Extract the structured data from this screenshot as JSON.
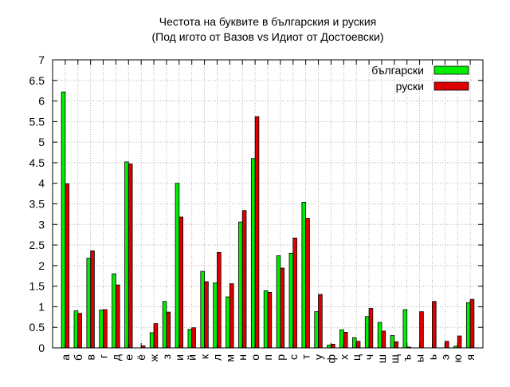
{
  "chart_data": {
    "type": "bar",
    "title": "Честота на буквите в българския и руския",
    "subtitle": "(Под игото от Вазов vs Идиот от Достоевски)",
    "xlabel": "",
    "ylabel": "",
    "ylim": [
      0,
      7
    ],
    "yticks": [
      "0",
      "0.5",
      "1",
      "1.5",
      "2",
      "2.5",
      "3",
      "3.5",
      "4",
      "4.5",
      "5",
      "5.5",
      "6",
      "6.5",
      "7"
    ],
    "grid": true,
    "legend_position": "top-right",
    "categories": [
      "а",
      "б",
      "в",
      "г",
      "д",
      "е",
      "ё",
      "ж",
      "з",
      "и",
      "й",
      "к",
      "л",
      "м",
      "н",
      "о",
      "п",
      "р",
      "с",
      "т",
      "у",
      "ф",
      "х",
      "ц",
      "ч",
      "ш",
      "щ",
      "ъ",
      "ы",
      "ь",
      "э",
      "ю",
      "я"
    ],
    "series": [
      {
        "name": "български",
        "color": "#00ee00",
        "values": [
          6.22,
          0.9,
          2.18,
          0.92,
          1.8,
          4.52,
          0,
          0.37,
          1.13,
          4.0,
          0.45,
          1.86,
          1.58,
          1.24,
          3.06,
          4.6,
          1.39,
          2.24,
          2.3,
          3.54,
          0.88,
          0.07,
          0.44,
          0.25,
          0.76,
          0.62,
          0.3,
          0.93,
          0,
          0,
          0,
          0.04,
          1.1
        ]
      },
      {
        "name": "руски",
        "color": "#dd0000",
        "values": [
          3.99,
          0.84,
          2.36,
          0.93,
          1.53,
          4.47,
          0.05,
          0.59,
          0.87,
          3.18,
          0.49,
          1.61,
          2.32,
          1.56,
          3.34,
          5.62,
          1.35,
          1.94,
          2.67,
          3.15,
          1.3,
          0.09,
          0.38,
          0.16,
          0.96,
          0.41,
          0.15,
          0.02,
          0.88,
          1.13,
          0.16,
          0.29,
          1.18
        ]
      }
    ]
  }
}
